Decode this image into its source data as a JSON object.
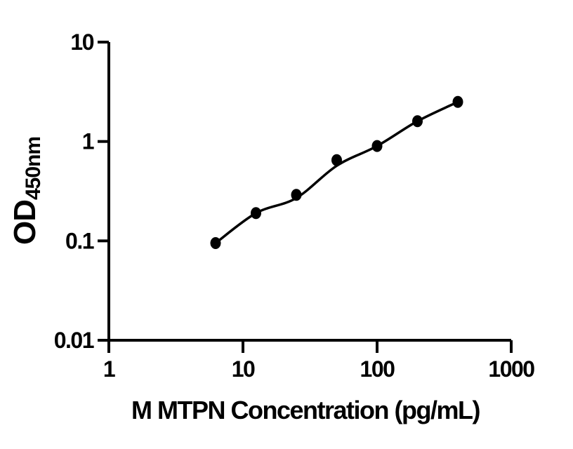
{
  "figure": {
    "background": "#ffffff"
  },
  "chart_data": {
    "type": "scatter",
    "title": "",
    "xlabel": "M MTPN Concentration (pg/mL)",
    "ylabel": "OD",
    "ylabel_sub": "450nm",
    "x_scale": "log",
    "y_scale": "log",
    "xlim": [
      1,
      1000
    ],
    "ylim": [
      0.01,
      10
    ],
    "x_ticks": [
      "1",
      "10",
      "100",
      "1000"
    ],
    "y_ticks": [
      "10",
      "1",
      "0.1",
      "0.01"
    ],
    "grid": false,
    "legend": null,
    "x": [
      6.25,
      12.5,
      25,
      50,
      100,
      200,
      400
    ],
    "y": [
      0.095,
      0.19,
      0.29,
      0.65,
      0.9,
      1.6,
      2.5
    ],
    "fit_y": [
      0.095,
      0.19,
      0.27,
      0.57,
      0.9,
      1.6,
      2.5
    ],
    "colors": {
      "point": "#000000",
      "line": "#000000",
      "axis": "#000000",
      "text": "#000000",
      "background": "#ffffff"
    }
  }
}
